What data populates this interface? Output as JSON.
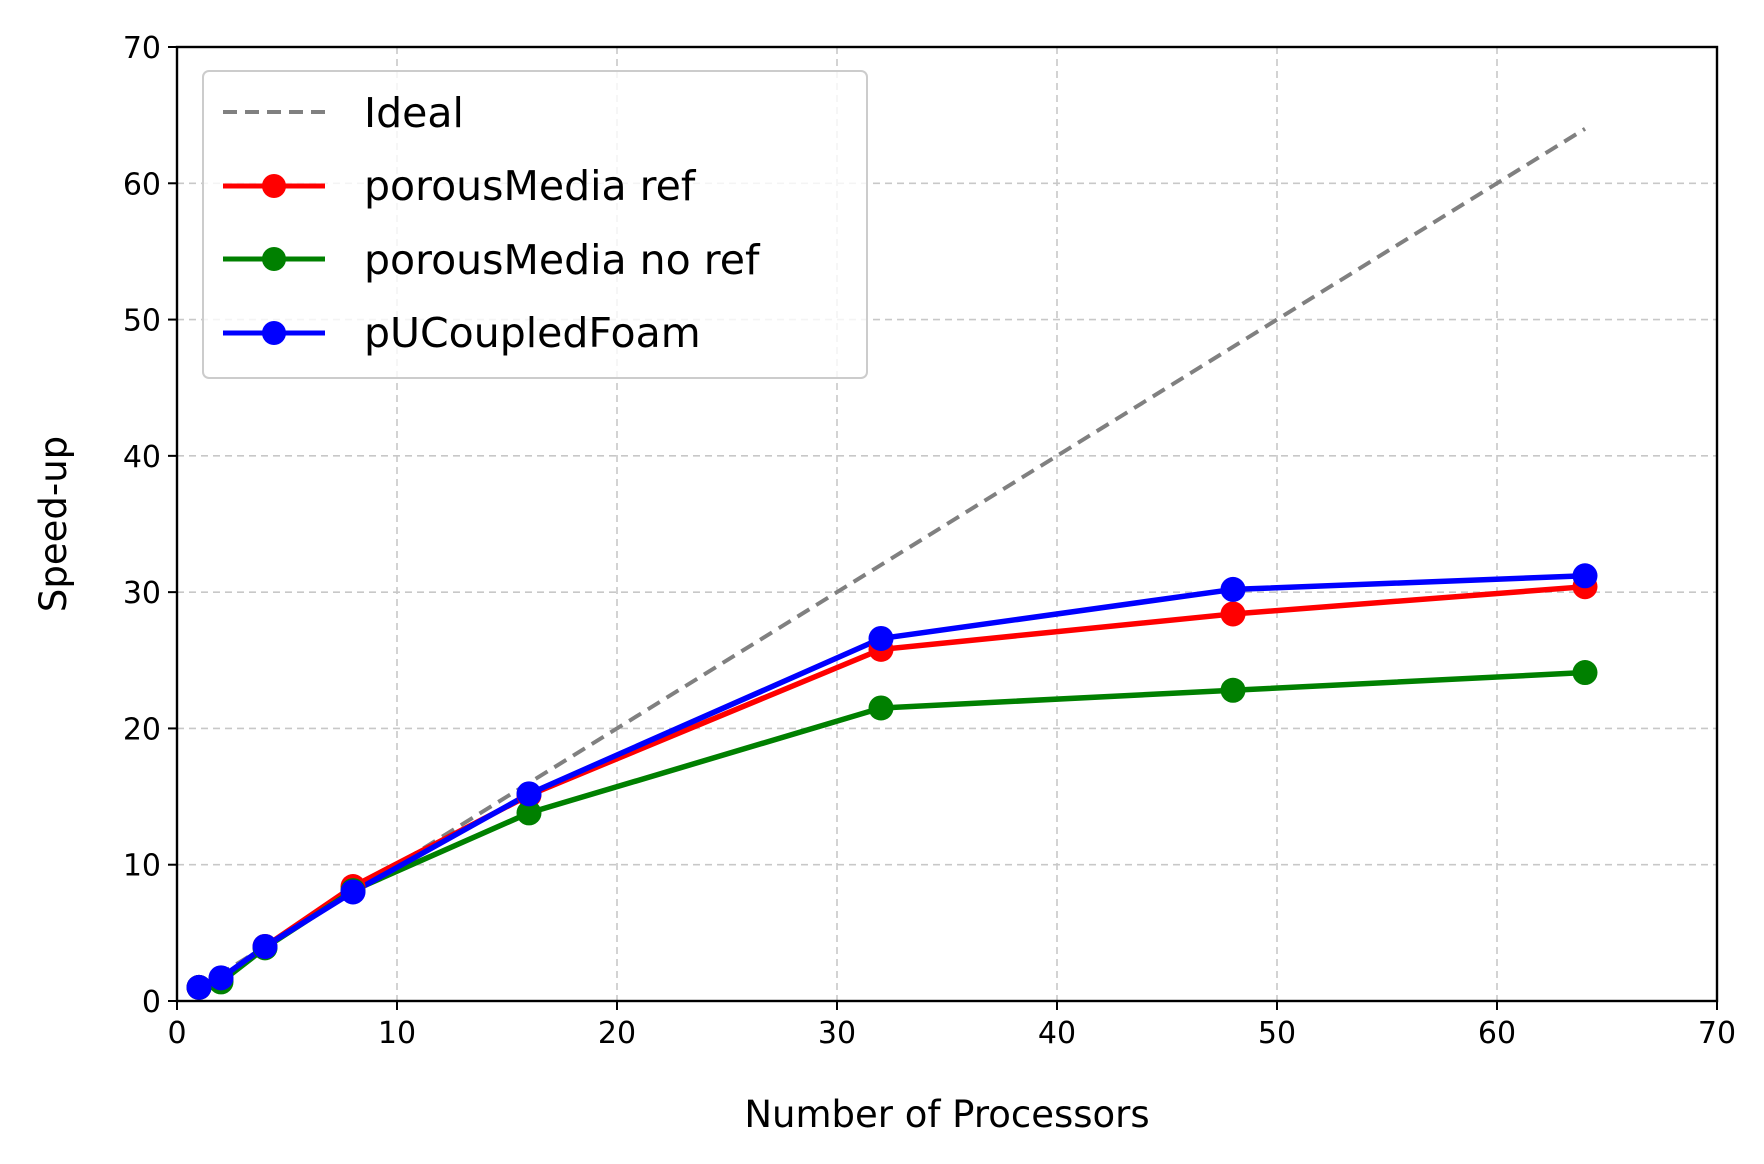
{
  "chart_data": {
    "type": "line",
    "title": "",
    "xlabel": "Number of Processors",
    "ylabel": "Speed-up",
    "xlim": [
      0,
      70
    ],
    "ylim": [
      0,
      70
    ],
    "xticks": [
      0,
      10,
      20,
      30,
      40,
      50,
      60,
      70
    ],
    "yticks": [
      0,
      10,
      20,
      30,
      40,
      50,
      60,
      70
    ],
    "grid": true,
    "legend_position": "top-left",
    "series": [
      {
        "name": "Ideal",
        "style": "dashed",
        "color": "#808080",
        "markers": false,
        "x": [
          1,
          64
        ],
        "y": [
          1,
          64
        ]
      },
      {
        "name": "porousMedia ref",
        "style": "solid",
        "color": "#ff0000",
        "markers": true,
        "x": [
          1,
          2,
          4,
          8,
          16,
          32,
          48,
          64
        ],
        "y": [
          1.0,
          1.6,
          4.0,
          8.4,
          15.1,
          25.8,
          28.4,
          30.4
        ]
      },
      {
        "name": "porousMedia no ref",
        "style": "solid",
        "color": "#008000",
        "markers": true,
        "x": [
          1,
          2,
          4,
          8,
          16,
          32,
          48,
          64
        ],
        "y": [
          1.0,
          1.4,
          3.9,
          8.1,
          13.8,
          21.5,
          22.8,
          24.1
        ]
      },
      {
        "name": "pUCoupledFoam",
        "style": "solid",
        "color": "#0000ff",
        "markers": true,
        "x": [
          1,
          2,
          4,
          8,
          16,
          32,
          48,
          64
        ],
        "y": [
          1.0,
          1.7,
          4.0,
          8.0,
          15.2,
          26.6,
          30.2,
          31.2
        ]
      }
    ]
  }
}
